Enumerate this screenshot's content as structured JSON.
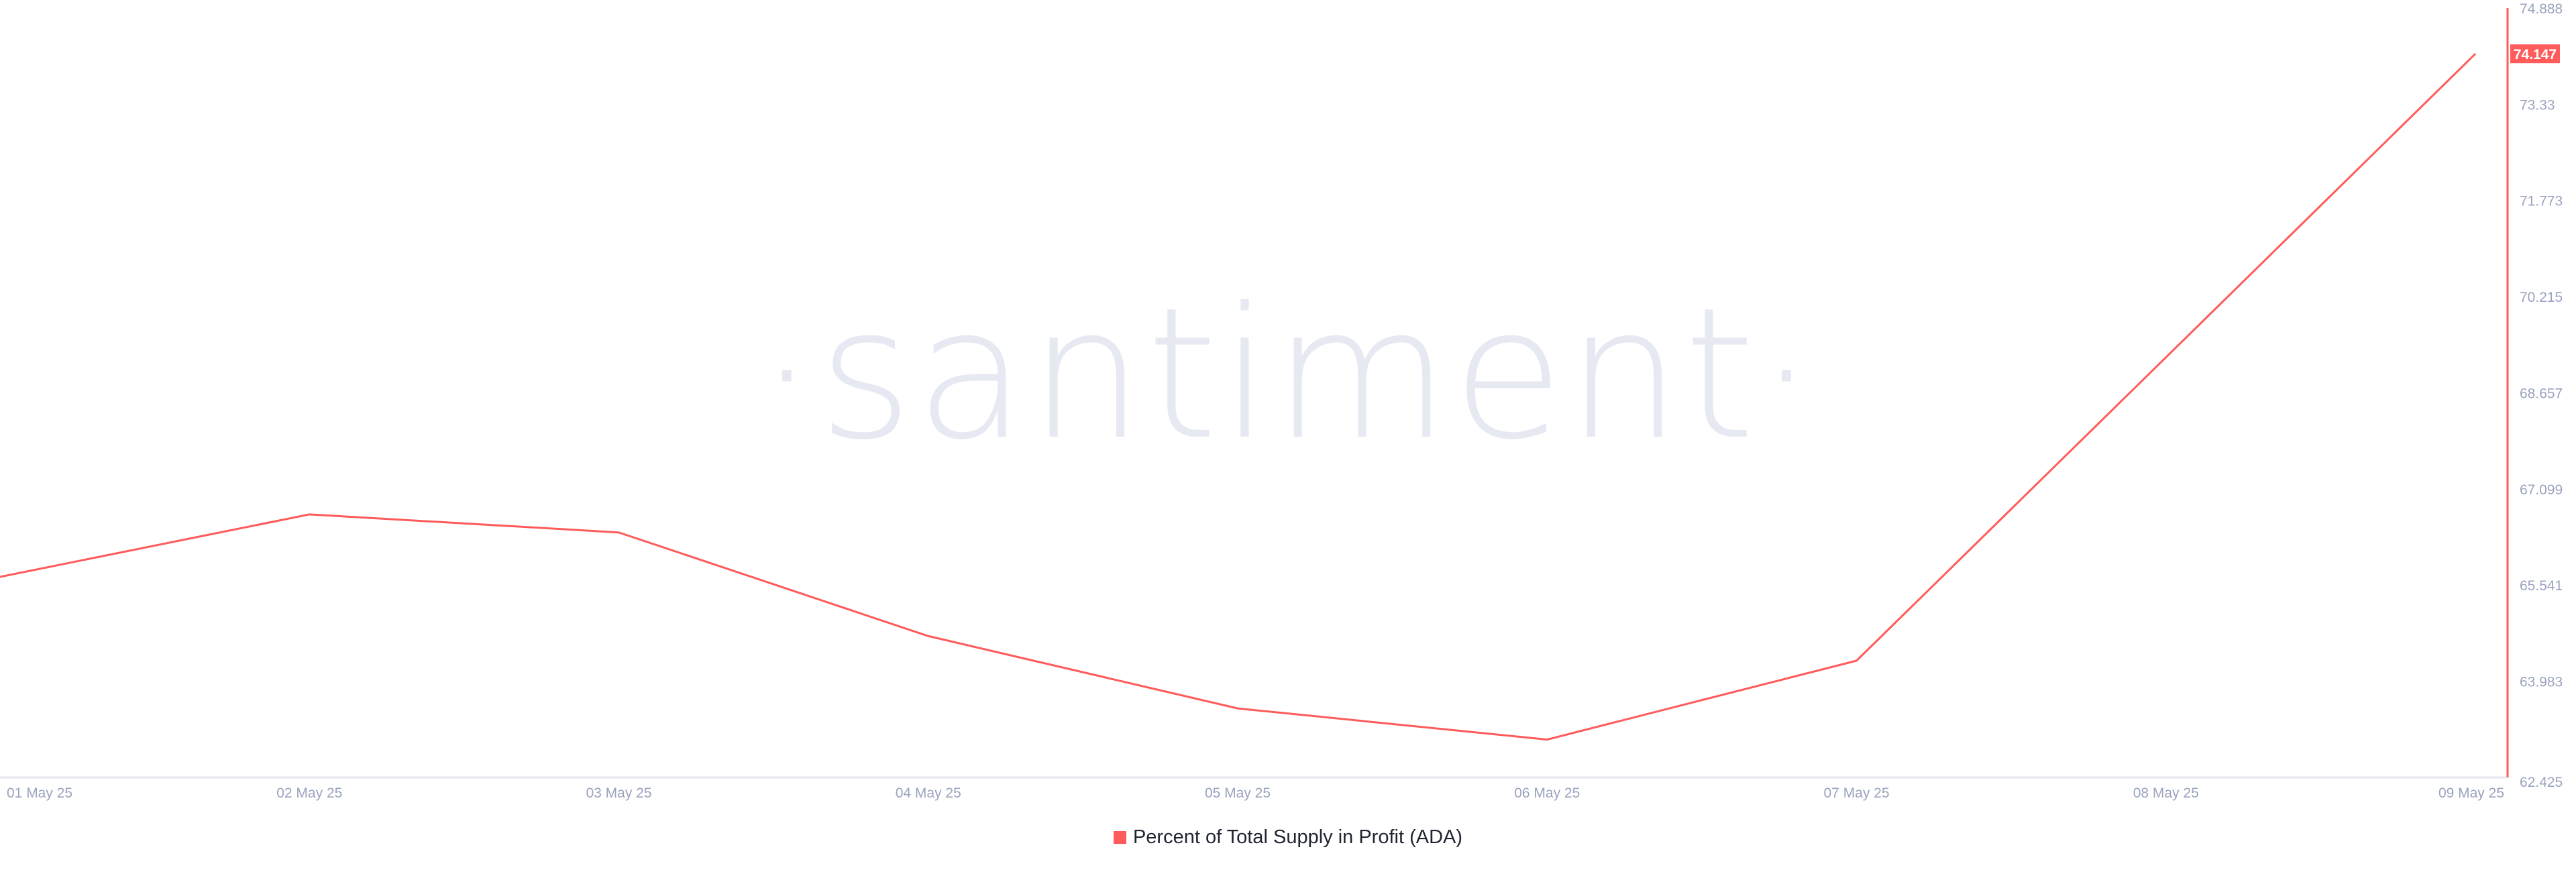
{
  "watermark": "·santiment·",
  "chart_data": {
    "type": "line",
    "title": "",
    "xlabel": "",
    "ylabel": "",
    "categories": [
      "01 May 25",
      "02 May 25",
      "03 May 25",
      "04 May 25",
      "05 May 25",
      "06 May 25",
      "07 May 25",
      "08 May 25",
      "09 May 25"
    ],
    "series": [
      {
        "name": "Percent of Total Supply in Profit (ADA)",
        "color": "#ff5b5b",
        "values": [
          65.674,
          66.686,
          66.393,
          64.715,
          63.543,
          63.038,
          64.316,
          69.23,
          74.147
        ]
      }
    ],
    "ylim": [
      62.425,
      74.888
    ],
    "yticks": [
      "74.888",
      "73.33",
      "71.773",
      "70.215",
      "68.657",
      "67.099",
      "65.541",
      "63.983",
      "62.425"
    ],
    "y_axis_position": "right",
    "last_value_label": "74.147",
    "grid": false,
    "legend_position": "bottom-center"
  }
}
